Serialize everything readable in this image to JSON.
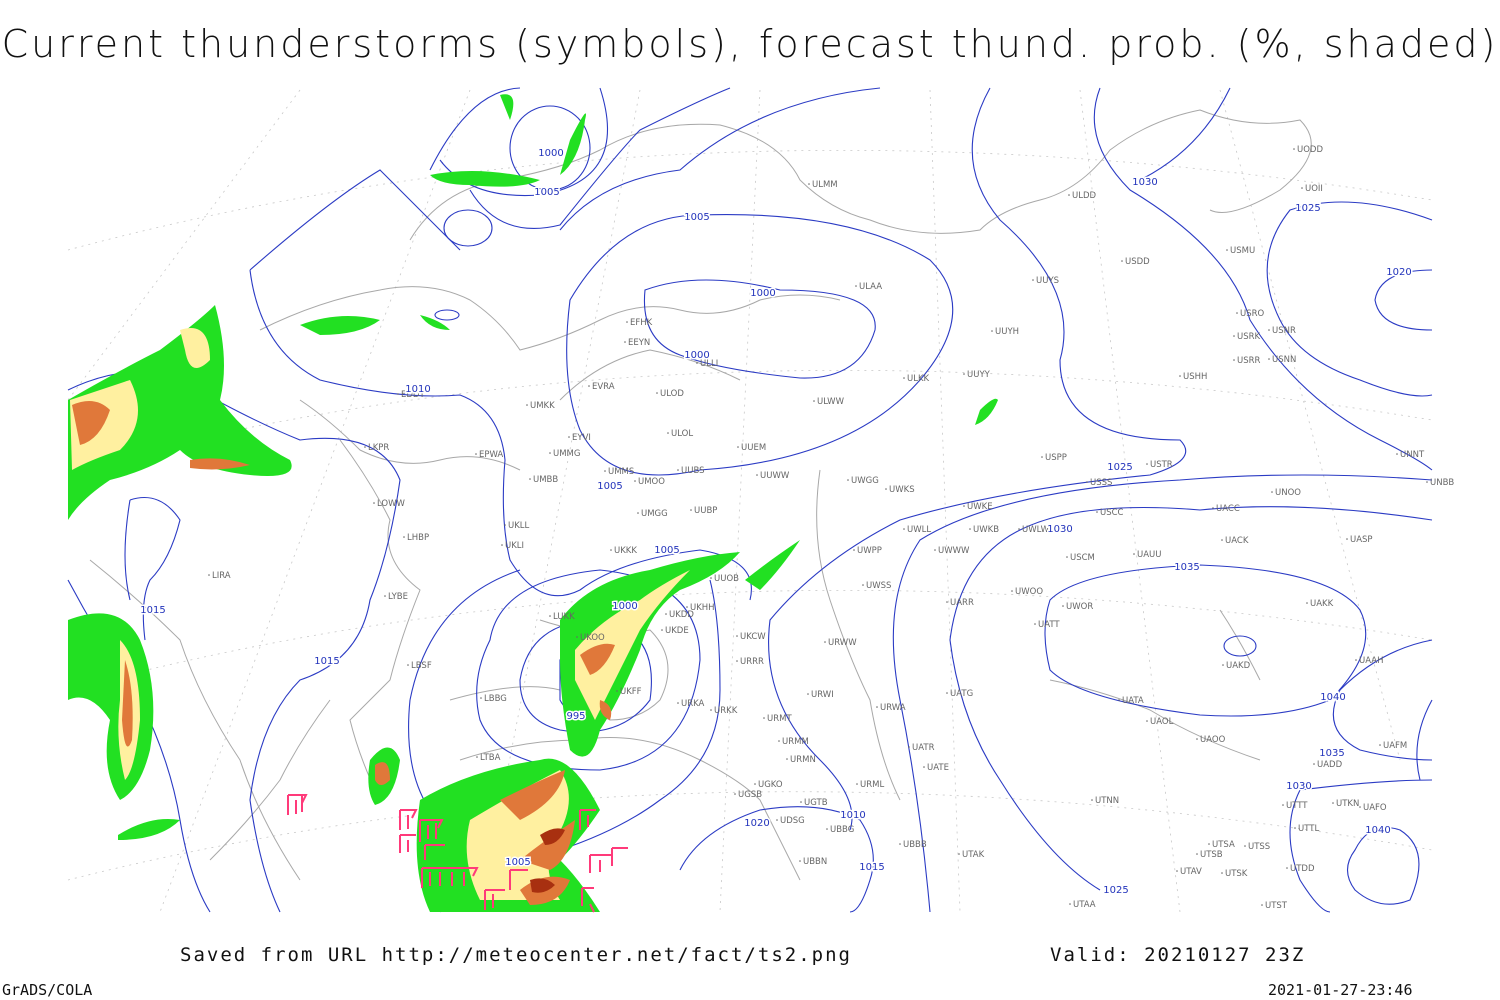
{
  "title": "Current thunderstorms (symbols), forecast thund. prob. (%, shaded)",
  "isobar_labels": [
    1000,
    1005,
    1005,
    1000,
    1000,
    1010,
    1030,
    1025,
    1020,
    1005,
    1025,
    1030,
    1035,
    1005,
    1015,
    1000,
    1015,
    995,
    1040,
    1035,
    1030,
    1020,
    1010,
    1040,
    1005,
    1015,
    1025
  ],
  "stations": [
    "UODD",
    "UOII",
    "ULDD",
    "UUYS",
    "USDD",
    "USMU",
    "USRO",
    "USRK",
    "USNR",
    "USRR",
    "USNN",
    "ULMM",
    "ULAA",
    "EFHK",
    "EEYN",
    "ULLI",
    "UUYH",
    "ULKK",
    "UUYY",
    "USHH",
    "EDDT",
    "UMKK",
    "EVRA",
    "ULOD",
    "ULWW",
    "UMMG",
    "EYVI",
    "ULOL",
    "UUEM",
    "LKPR",
    "EPWA",
    "UMMS",
    "UUBS",
    "UMOO",
    "UUWW",
    "UWGG",
    "UWKS",
    "USPP",
    "USSS",
    "USTR",
    "UNOO",
    "UNNT",
    "UNBB",
    "UMBB",
    "LOWW",
    "UMGG",
    "UUBP",
    "UWKE",
    "UWKB",
    "UWLW",
    "USCC",
    "UACC",
    "UACK",
    "UASP",
    "LHBP",
    "UKLL",
    "UKLI",
    "UWLL",
    "UWWW",
    "USCM",
    "UAUU",
    "UKKK",
    "UUOB",
    "UWPP",
    "LIRA",
    "LYBE",
    "UWSS",
    "UARR",
    "UWOO",
    "UWOR",
    "UAKK",
    "LUKK",
    "UKDD",
    "UKHH",
    "UKDE",
    "UKOO",
    "UKCW",
    "URWW",
    "UATT",
    "UAKD",
    "UAAH",
    "LBSF",
    "URRR",
    "UKFF",
    "URKA",
    "URKK",
    "LBBG",
    "URWI",
    "UATG",
    "URWA",
    "UATA",
    "UAOL",
    "UAOO",
    "URMT",
    "UAFM",
    "URMM",
    "UATR",
    "UATE",
    "UADD",
    "URMN",
    "LTBA",
    "URML",
    "UGKO",
    "UGSB",
    "UGTB",
    "UTNN",
    "UTTT",
    "UTKN",
    "UAFO",
    "UDSG",
    "UBBG",
    "UTTL",
    "UBBB",
    "UTSA",
    "UTSS",
    "UTSB",
    "UTAK",
    "UBBN",
    "UTAV",
    "UTSK",
    "UTDD",
    "UTAA",
    "UTST"
  ],
  "footer": {
    "source": "Saved from URL http://meteocenter.net/fact/ts2.png",
    "valid": "Valid: 20210127 23Z",
    "software": "GrADS/COLA",
    "timestamp": "2021-01-27-23:46"
  }
}
